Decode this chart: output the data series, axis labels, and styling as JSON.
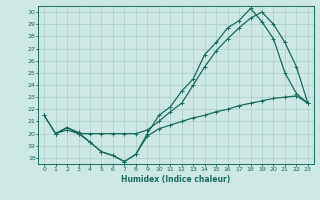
{
  "xlabel": "Humidex (Indice chaleur)",
  "bg_color": "#cce8e4",
  "line_color": "#1a6b5a",
  "grid_color": "#aacfca",
  "xlim": [
    -0.5,
    23.5
  ],
  "ylim": [
    17.5,
    30.5
  ],
  "yticks": [
    18,
    19,
    20,
    21,
    22,
    23,
    24,
    25,
    26,
    27,
    28,
    29,
    30
  ],
  "xticks": [
    0,
    1,
    2,
    3,
    4,
    5,
    6,
    7,
    8,
    9,
    10,
    11,
    12,
    13,
    14,
    15,
    16,
    17,
    18,
    19,
    20,
    21,
    22,
    23
  ],
  "line1_x": [
    0,
    1,
    2,
    3,
    4,
    5,
    6,
    7,
    8,
    9,
    10,
    11,
    12,
    13,
    14,
    15,
    16,
    17,
    18,
    19,
    20,
    21,
    22,
    23
  ],
  "line1_y": [
    21.5,
    20.0,
    20.5,
    20.0,
    19.3,
    18.5,
    18.2,
    17.7,
    18.3,
    19.8,
    20.4,
    20.7,
    21.0,
    21.3,
    21.5,
    21.8,
    22.0,
    22.3,
    22.5,
    22.7,
    22.9,
    23.0,
    23.1,
    22.5
  ],
  "line2_x": [
    0,
    1,
    2,
    3,
    4,
    5,
    6,
    7,
    8,
    9,
    10,
    11,
    12,
    13,
    14,
    15,
    16,
    17,
    18,
    19,
    20,
    21,
    22,
    23
  ],
  "line2_y": [
    21.5,
    20.0,
    20.5,
    20.1,
    19.3,
    18.5,
    18.2,
    17.7,
    18.3,
    20.0,
    21.5,
    22.2,
    23.5,
    24.5,
    26.5,
    27.5,
    28.7,
    29.3,
    30.3,
    29.2,
    27.8,
    25.0,
    23.3,
    22.5
  ],
  "line3_x": [
    1,
    2,
    3,
    4,
    5,
    6,
    7,
    8,
    9,
    10,
    11,
    12,
    13,
    14,
    15,
    16,
    17,
    18,
    19,
    20,
    21,
    22,
    23
  ],
  "line3_y": [
    20.0,
    20.3,
    20.0,
    20.0,
    20.0,
    20.0,
    20.0,
    20.0,
    20.3,
    21.0,
    21.8,
    22.5,
    24.0,
    25.5,
    26.8,
    27.8,
    28.7,
    29.5,
    30.0,
    29.0,
    27.5,
    25.5,
    22.5
  ]
}
